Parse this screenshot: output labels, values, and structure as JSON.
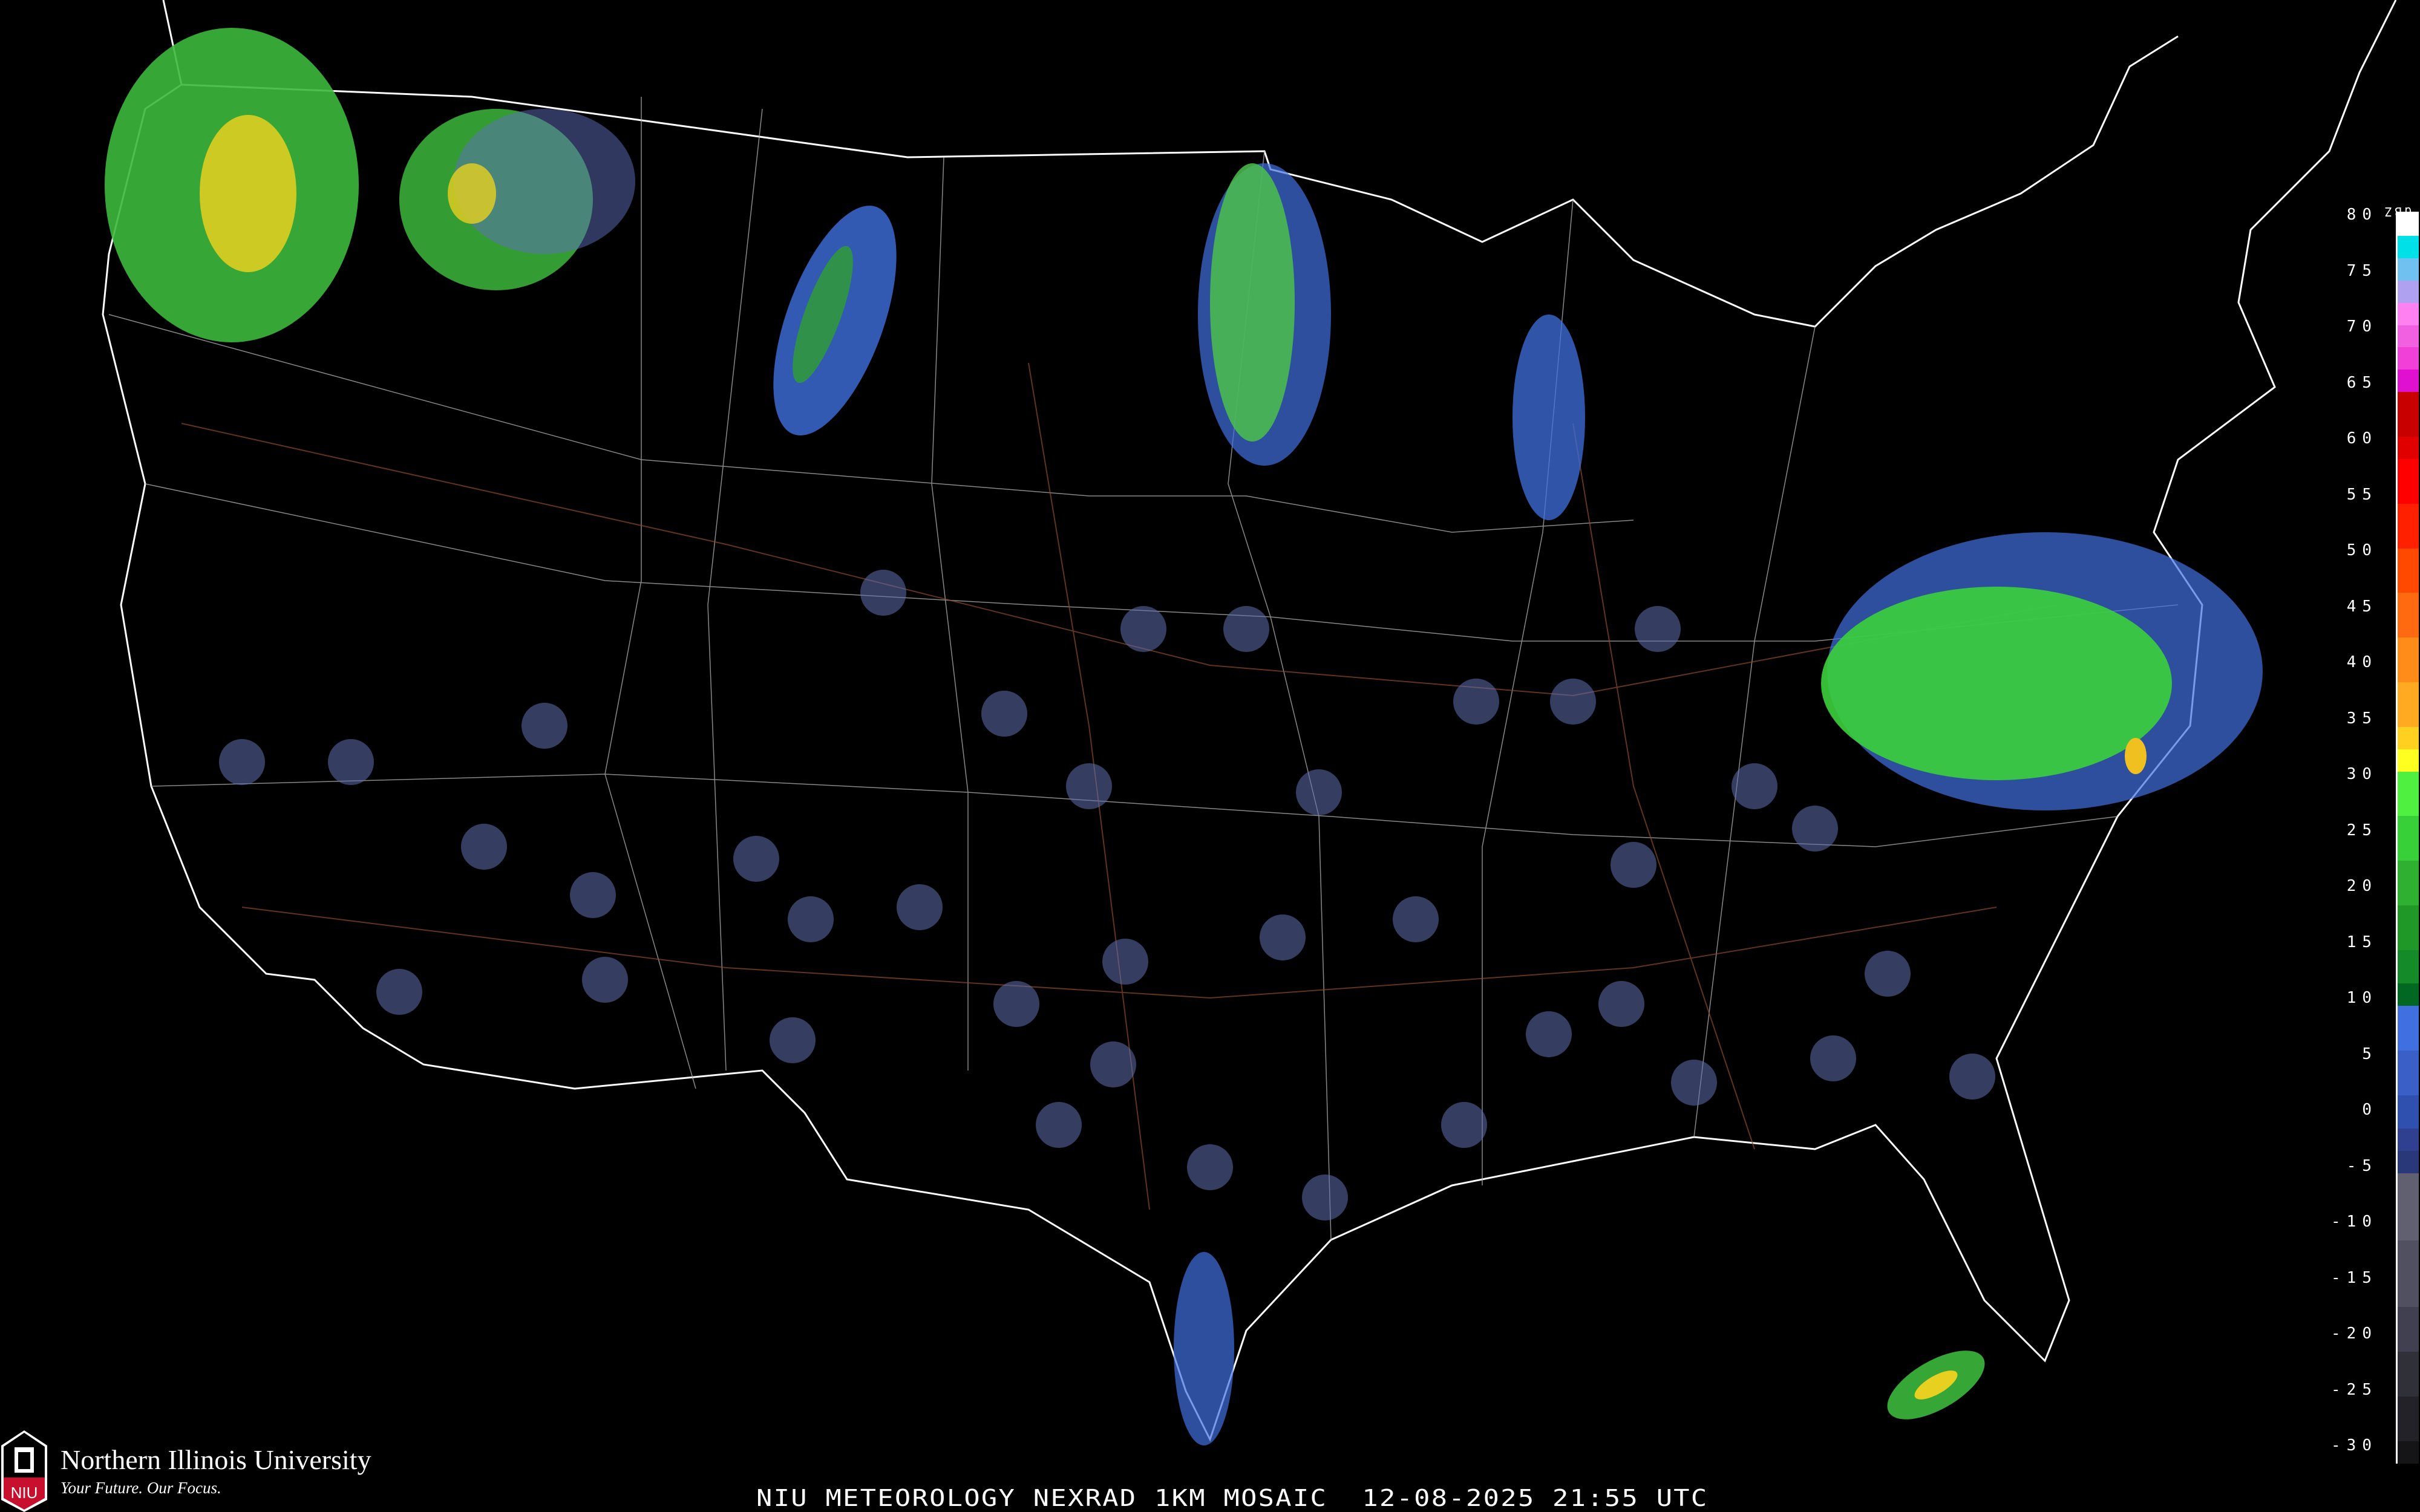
{
  "map": {
    "title": "NIU METEOROLOGY NEXRAD 1KM MOSAIC  12-08-2025 21:55 UTC",
    "product": "NEXRAD 1KM MOSAIC",
    "date": "12-08-2025",
    "time": "21:55 UTC",
    "background_color": "#000000",
    "border_color": "#ffffff",
    "road_color": "#8b4a2b"
  },
  "logo": {
    "name": "Northern Illinois University",
    "tagline": "Your Future. Our Focus.",
    "mark_text": "NIU",
    "brand_color": "#c8102e"
  },
  "legend": {
    "unit": "dBZ",
    "ticks": [
      "80",
      "75",
      "70",
      "65",
      "60",
      "55",
      "50",
      "45",
      "40",
      "35",
      "30",
      "25",
      "20",
      "15",
      "10",
      "5",
      "0",
      "-5",
      "-10",
      "-15",
      "-20",
      "-25",
      "-30"
    ],
    "colors": [
      {
        "dbz": 80,
        "color": "#ffffff"
      },
      {
        "dbz": 78,
        "color": "#00e0e8"
      },
      {
        "dbz": 76,
        "color": "#70c0f0"
      },
      {
        "dbz": 74,
        "color": "#b0a0f0"
      },
      {
        "dbz": 72,
        "color": "#ff80f0"
      },
      {
        "dbz": 70,
        "color": "#f060e0"
      },
      {
        "dbz": 68,
        "color": "#f040d8"
      },
      {
        "dbz": 66,
        "color": "#e010d0"
      },
      {
        "dbz": 64,
        "color": "#c80000"
      },
      {
        "dbz": 60,
        "color": "#e00000"
      },
      {
        "dbz": 58,
        "color": "#ff0000"
      },
      {
        "dbz": 54,
        "color": "#ff2000"
      },
      {
        "dbz": 50,
        "color": "#ff4800"
      },
      {
        "dbz": 46,
        "color": "#ff6a10"
      },
      {
        "dbz": 42,
        "color": "#ff8c18"
      },
      {
        "dbz": 38,
        "color": "#ffaa20"
      },
      {
        "dbz": 34,
        "color": "#ffd020"
      },
      {
        "dbz": 32,
        "color": "#ffff20"
      },
      {
        "dbz": 30,
        "color": "#50f040"
      },
      {
        "dbz": 26,
        "color": "#38d038"
      },
      {
        "dbz": 22,
        "color": "#30b030"
      },
      {
        "dbz": 18,
        "color": "#209828"
      },
      {
        "dbz": 14,
        "color": "#148a28"
      },
      {
        "dbz": 11,
        "color": "#006820"
      },
      {
        "dbz": 9,
        "color": "#4070e0"
      },
      {
        "dbz": 5,
        "color": "#3a60c8"
      },
      {
        "dbz": 1,
        "color": "#3050b0"
      },
      {
        "dbz": -2,
        "color": "#304090"
      },
      {
        "dbz": -4,
        "color": "#283878"
      },
      {
        "dbz": -6,
        "color": "#606070"
      },
      {
        "dbz": -12,
        "color": "#505060"
      },
      {
        "dbz": -18,
        "color": "#404050"
      },
      {
        "dbz": -22,
        "color": "#303038"
      },
      {
        "dbz": -26,
        "color": "#222228"
      },
      {
        "dbz": -30,
        "color": "#151518"
      }
    ]
  },
  "echoes": [
    {
      "region": "Washington",
      "level": "heavy",
      "color": "#40c040",
      "core": "#f0d020"
    },
    {
      "region": "Idaho-Montana",
      "level": "moderate",
      "color": "#40c040",
      "core": "#f0d020"
    },
    {
      "region": "Montana",
      "level": "light",
      "color": "#4070e0",
      "core": "#30b030"
    },
    {
      "region": "Minnesota",
      "level": "moderate",
      "color": "#50c050",
      "core": "#40a040"
    },
    {
      "region": "Lake Michigan",
      "level": "light",
      "color": "#4070e0"
    },
    {
      "region": "Mid-Atlantic",
      "level": "moderate",
      "color": "#40d040",
      "core": "#30b030"
    },
    {
      "region": "South Florida offshore",
      "level": "moderate",
      "color": "#40c040",
      "core": "#f0d020"
    }
  ]
}
